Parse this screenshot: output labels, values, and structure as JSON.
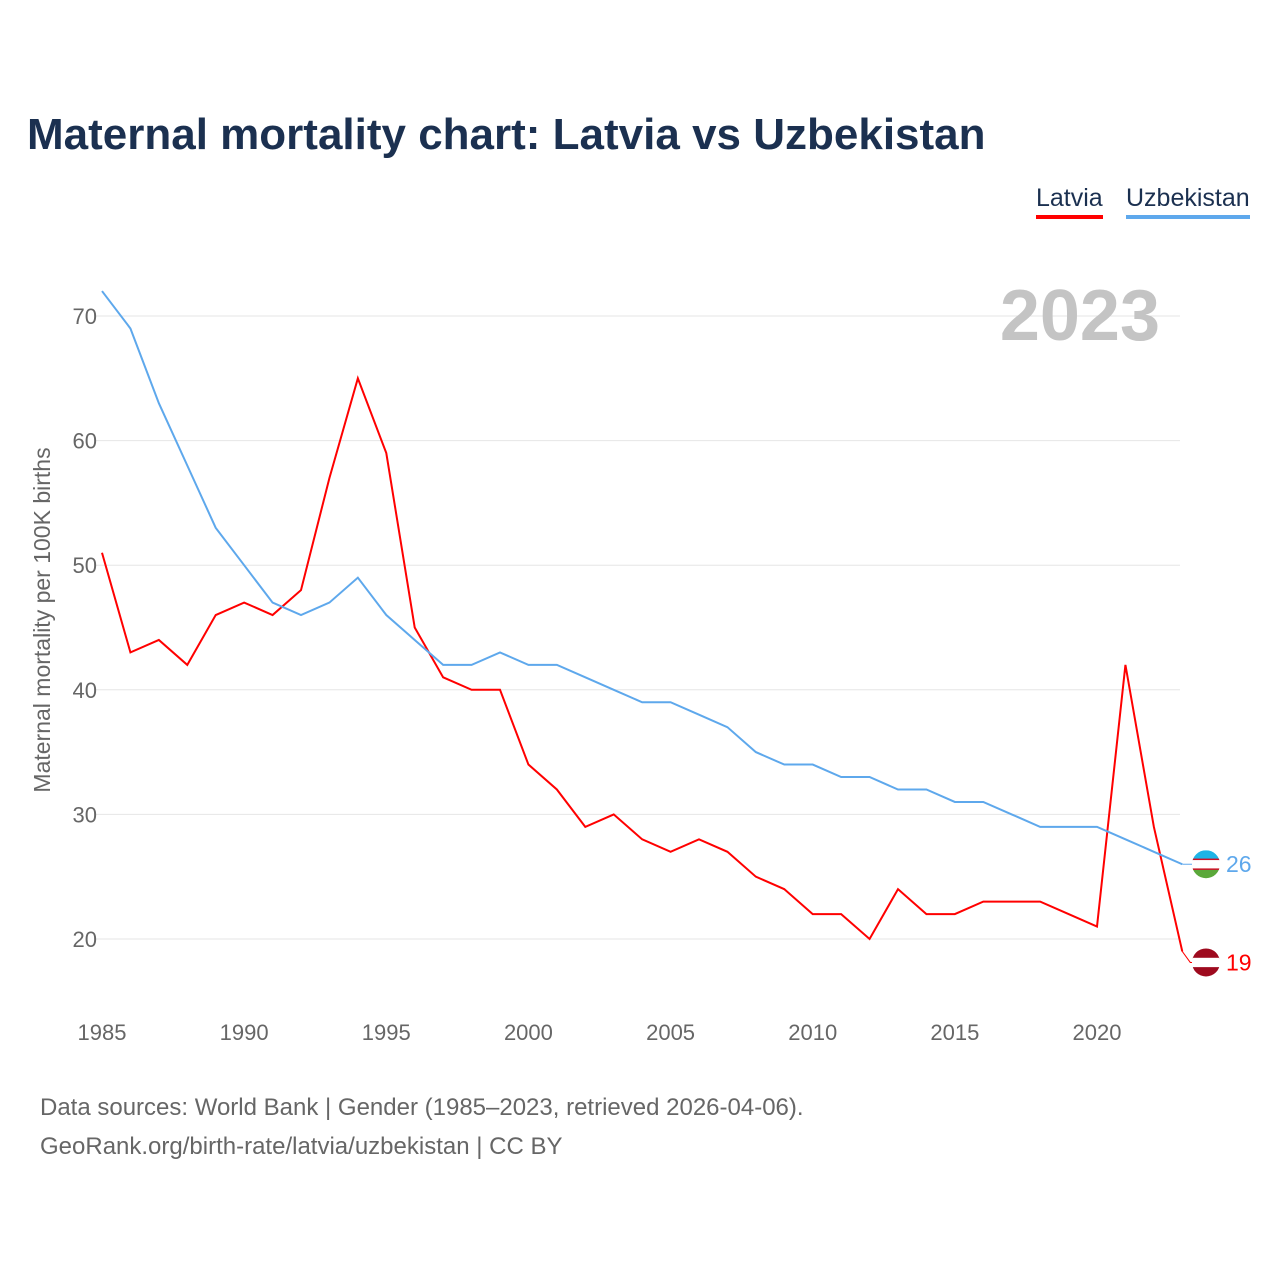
{
  "title": "Maternal mortality chart: Latvia vs Uzbekistan",
  "year_label": "2023",
  "source_line1": "Data sources: World Bank | Gender (1985–2023, retrieved 2026-04-06).",
  "source_line2": "GeoRank.org/birth-rate/latvia/uzbekistan | CC BY",
  "chart_data": {
    "type": "line",
    "title": "Maternal mortality chart: Latvia vs Uzbekistan",
    "xlabel": "",
    "ylabel": "Maternal mortality per 100K births",
    "xlim": [
      1985,
      2023
    ],
    "ylim": [
      15,
      73
    ],
    "xticks": [
      1985,
      1990,
      1995,
      2000,
      2005,
      2010,
      2015,
      2020
    ],
    "yticks": [
      20,
      30,
      40,
      50,
      60,
      70
    ],
    "grid": true,
    "legend": "top-right",
    "x": [
      1985,
      1986,
      1987,
      1988,
      1989,
      1990,
      1991,
      1992,
      1993,
      1994,
      1995,
      1996,
      1997,
      1998,
      1999,
      2000,
      2001,
      2002,
      2003,
      2004,
      2005,
      2006,
      2007,
      2008,
      2009,
      2010,
      2011,
      2012,
      2013,
      2014,
      2015,
      2016,
      2017,
      2018,
      2019,
      2020,
      2021,
      2022,
      2023
    ],
    "series": [
      {
        "name": "Latvia",
        "color": "#ff0000",
        "end_label": "19",
        "values": [
          51,
          43,
          44,
          42,
          46,
          47,
          46,
          48,
          57,
          65,
          59,
          45,
          41,
          40,
          40,
          34,
          32,
          29,
          30,
          28,
          27,
          28,
          27,
          25,
          24,
          22,
          22,
          20,
          24,
          22,
          22,
          23,
          23,
          23,
          22,
          21,
          42,
          29,
          19
        ]
      },
      {
        "name": "Uzbekistan",
        "color": "#5ea8ec",
        "end_label": "26",
        "values": [
          72,
          69,
          63,
          58,
          53,
          50,
          47,
          46,
          47,
          49,
          46,
          44,
          42,
          42,
          43,
          42,
          42,
          41,
          40,
          39,
          39,
          38,
          37,
          35,
          34,
          34,
          33,
          33,
          32,
          32,
          31,
          31,
          30,
          29,
          29,
          29,
          28,
          27,
          26
        ]
      }
    ]
  }
}
